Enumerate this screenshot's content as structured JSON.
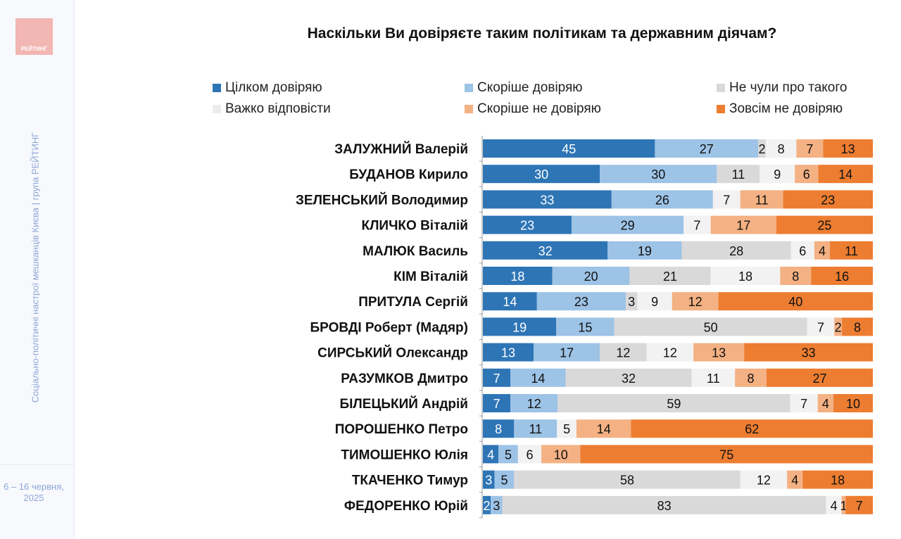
{
  "sidebar": {
    "logo_text": "РЕЙТИНГ",
    "vertical_text": "Соціально-політичні настрої мешканців Києва | група РЕЙТИНГ",
    "date": "6 – 16 червня, 2025"
  },
  "chart_data": {
    "type": "bar",
    "orientation": "horizontal",
    "stacked": true,
    "title": "Наскільки Ви довіряєте таким політикам та державним діячам?",
    "legend_position": "top",
    "series": [
      {
        "name": "Цілком довіряю",
        "color": "#2e75b6",
        "values": [
          45,
          30,
          33,
          23,
          32,
          18,
          14,
          19,
          13,
          7,
          7,
          8,
          4,
          3,
          2
        ]
      },
      {
        "name": "Скоріше довіряю",
        "color": "#9dc3e6",
        "values": [
          27,
          30,
          26,
          29,
          19,
          20,
          23,
          15,
          17,
          14,
          12,
          11,
          5,
          5,
          3
        ]
      },
      {
        "name": "Не чули про такого",
        "color": "#d9d9d9",
        "values": [
          2,
          11,
          null,
          null,
          28,
          21,
          3,
          50,
          12,
          32,
          59,
          null,
          null,
          58,
          83
        ]
      },
      {
        "name": "Важко відповісти",
        "color": "#f2f2f2",
        "values": [
          8,
          9,
          7,
          7,
          6,
          18,
          9,
          7,
          12,
          11,
          7,
          5,
          6,
          12,
          4
        ]
      },
      {
        "name": "Скоріше не довіряю",
        "color": "#f4b183",
        "values": [
          7,
          6,
          11,
          17,
          4,
          8,
          12,
          2,
          13,
          8,
          4,
          14,
          10,
          4,
          1
        ]
      },
      {
        "name": "Зовсім не довіряю",
        "color": "#ed7d31",
        "values": [
          13,
          14,
          23,
          25,
          11,
          16,
          40,
          8,
          33,
          27,
          10,
          62,
          75,
          18,
          7
        ]
      }
    ],
    "categories": [
      "ЗАЛУЖНИЙ Валерій",
      "БУДАНОВ Кирило",
      "ЗЕЛЕНСЬКИЙ Володимир",
      "КЛИЧКО Віталій",
      "МАЛЮК Василь",
      "КІМ Віталій",
      "ПРИТУЛА Сергій",
      "БРОВДІ Роберт (Мадяр)",
      "СИРСЬКИЙ Олександр",
      "РАЗУМКОВ Дмитро",
      "БІЛЕЦЬКИЙ Андрій",
      "ПОРОШЕНКО Петро",
      "ТИМОШЕНКО Юлія",
      "ТКАЧЕНКО Тимур",
      "ФЕДОРЕНКО Юрій"
    ]
  }
}
